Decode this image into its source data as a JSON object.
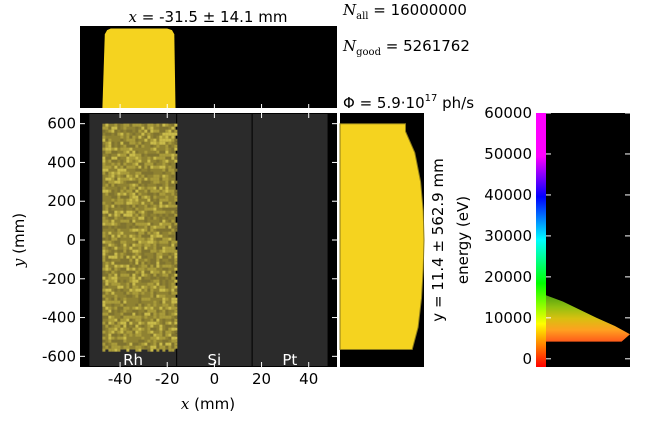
{
  "stats": {
    "x_title_var": "x",
    "x_title_value": " = -31.5 ± 14.1 mm",
    "n_all_label": "N",
    "n_all_sub": "all",
    "n_all_value": " = 16000000",
    "n_good_label": "N",
    "n_good_sub": "good",
    "n_good_value": " = 5261762",
    "flux_label": "Φ",
    "flux_value": " = 5.9·10",
    "flux_exp": "17",
    "flux_unit": " ph/s",
    "y_side_label": "y = 11.4 ± 562.9 mm"
  },
  "colors": {
    "beam": "#f5d31f",
    "beam_dark": "#8a7a1a",
    "stripe_bg": "#2b2b2b",
    "frame_bg": "#000000"
  },
  "chart_data": [
    {
      "type": "heatmap",
      "name": "footprint",
      "xlabel_var": "x",
      "xlabel_unit": " (mm)",
      "ylabel_var": "y",
      "ylabel_unit": " (mm)",
      "xlim": [
        -57,
        52
      ],
      "ylim": [
        -655,
        655
      ],
      "xticks": [
        -40,
        -20,
        0,
        20,
        40
      ],
      "yticks": [
        -600,
        -400,
        -200,
        0,
        200,
        400,
        600
      ],
      "stripes": [
        {
          "label": "Rh",
          "x_range": [
            -53,
            -16
          ]
        },
        {
          "label": "Si",
          "x_range": [
            -16,
            16
          ]
        },
        {
          "label": "Pt",
          "x_range": [
            16,
            48
          ]
        }
      ],
      "beam": {
        "x_range": [
          -47.5,
          -16.5
        ],
        "y_range": [
          -565,
          600
        ]
      }
    },
    {
      "type": "area",
      "name": "x-histogram",
      "x": [
        -47.5,
        -46.5,
        -45.5,
        -44,
        -20,
        -18,
        -17,
        -16.5
      ],
      "values": [
        0.0,
        0.9,
        0.95,
        0.97,
        0.97,
        0.95,
        0.9,
        0.0
      ]
    },
    {
      "type": "area",
      "name": "y-histogram",
      "y": [
        -565,
        -450,
        -300,
        -150,
        0,
        150,
        300,
        450,
        560,
        600
      ],
      "values": [
        0.86,
        0.93,
        0.97,
        0.99,
        1.0,
        0.99,
        0.96,
        0.89,
        0.78,
        0.78
      ]
    },
    {
      "type": "area",
      "name": "energy-histogram",
      "ylabel": "energy (eV)",
      "ylim": [
        -2000,
        60000
      ],
      "yticks": [
        0,
        10000,
        20000,
        30000,
        40000,
        50000,
        60000
      ],
      "energy": [
        4200,
        6000,
        8000,
        10000,
        12000,
        14000,
        15500
      ],
      "values": [
        0.9,
        1.0,
        0.82,
        0.6,
        0.4,
        0.2,
        0.0
      ]
    }
  ]
}
